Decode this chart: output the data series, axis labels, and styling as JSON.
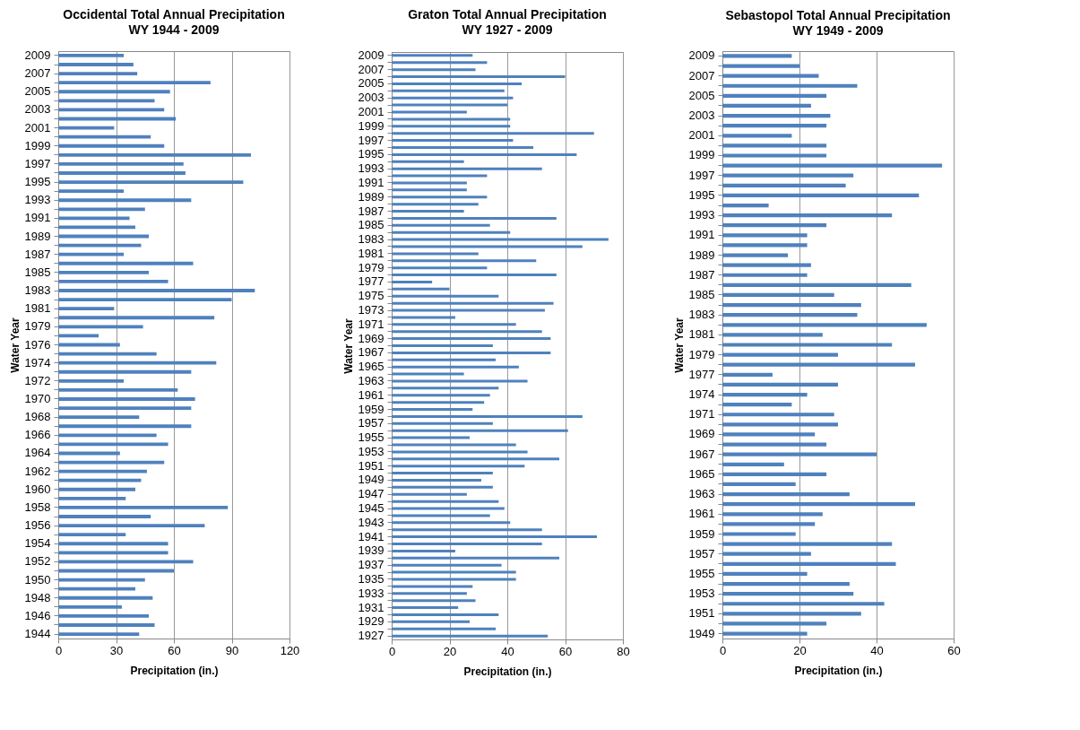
{
  "chart_data": [
    {
      "type": "bar",
      "orientation": "horizontal",
      "title": "Occidental Total Annual Precipitation",
      "subtitle": "WY 1944 - 2009",
      "xlabel": "Precipitation (in.)",
      "ylabel": "Water Year",
      "color": "#4f81bd",
      "grid": "x",
      "xlim": [
        0,
        120
      ],
      "xticks": [
        0,
        30,
        60,
        90,
        120
      ],
      "categories": [
        "2009",
        null,
        "2007",
        null,
        "2005",
        null,
        "2003",
        null,
        "2001",
        null,
        "1999",
        null,
        "1997",
        null,
        "1995",
        null,
        "1993",
        null,
        "1991",
        null,
        "1989",
        null,
        "1987",
        null,
        "1985",
        null,
        "1983",
        null,
        "1981",
        null,
        "1979",
        null,
        "1976",
        null,
        "1974",
        null,
        "1972",
        null,
        "1970",
        null,
        "1968",
        null,
        "1966",
        null,
        "1964",
        null,
        "1962",
        null,
        "1960",
        null,
        "1958",
        null,
        "1956",
        null,
        "1954",
        null,
        "1952",
        null,
        "1950",
        null,
        "1948",
        null,
        "1946",
        null,
        "1944"
      ],
      "values": [
        34,
        39,
        41,
        79,
        58,
        50,
        55,
        61,
        29,
        48,
        55,
        100,
        65,
        66,
        96,
        34,
        69,
        45,
        37,
        40,
        47,
        43,
        34,
        70,
        47,
        57,
        102,
        90,
        29,
        81,
        44,
        21,
        32,
        51,
        82,
        69,
        34,
        62,
        71,
        69,
        42,
        69,
        51,
        57,
        32,
        55,
        46,
        43,
        40,
        35,
        88,
        48,
        76,
        35,
        57,
        57,
        70,
        60,
        45,
        40,
        49,
        33,
        47,
        50,
        42
      ]
    },
    {
      "type": "bar",
      "orientation": "horizontal",
      "title": "Graton Total Annual Precipitation",
      "subtitle": "WY 1927 - 2009",
      "xlabel": "Precipitation (in.)",
      "ylabel": "Water Year",
      "color": "#4f81bd",
      "grid": "x",
      "xlim": [
        0,
        80
      ],
      "xticks": [
        0,
        20,
        40,
        60,
        80
      ],
      "categories": [
        "2009",
        null,
        "2007",
        null,
        "2005",
        null,
        "2003",
        null,
        "2001",
        null,
        "1999",
        null,
        "1997",
        null,
        "1995",
        null,
        "1993",
        null,
        "1991",
        null,
        "1989",
        null,
        "1987",
        null,
        "1985",
        null,
        "1983",
        null,
        "1981",
        null,
        "1979",
        null,
        "1977",
        null,
        "1975",
        null,
        "1973",
        null,
        "1971",
        null,
        "1969",
        null,
        "1967",
        null,
        "1965",
        null,
        "1963",
        null,
        "1961",
        null,
        "1959",
        null,
        "1957",
        null,
        "1955",
        null,
        "1953",
        null,
        "1951",
        null,
        "1949",
        null,
        "1947",
        null,
        "1945",
        null,
        "1943",
        null,
        "1941",
        null,
        "1939",
        null,
        "1937",
        null,
        "1935",
        null,
        "1933",
        null,
        "1931",
        null,
        "1929",
        null,
        "1927"
      ],
      "values": [
        28,
        33,
        29,
        60,
        45,
        39,
        42,
        40,
        26,
        41,
        41,
        70,
        42,
        49,
        64,
        25,
        52,
        33,
        26,
        26,
        33,
        30,
        25,
        57,
        34,
        41,
        75,
        66,
        30,
        50,
        33,
        57,
        14,
        20,
        37,
        56,
        53,
        22,
        43,
        52,
        55,
        35,
        55,
        36,
        44,
        25,
        47,
        37,
        34,
        32,
        28,
        66,
        35,
        61,
        27,
        43,
        47,
        58,
        46,
        35,
        31,
        35,
        26,
        37,
        39,
        34,
        41,
        52,
        71,
        52,
        22,
        58,
        38,
        43,
        43,
        28,
        26,
        29,
        23,
        37,
        27,
        36,
        54
      ]
    },
    {
      "type": "bar",
      "orientation": "horizontal",
      "title": "Sebastopol Total Annual Precipitation",
      "subtitle": "WY 1949 - 2009",
      "xlabel": "Precipitation (in.)",
      "ylabel": "Water Year",
      "color": "#4f81bd",
      "grid": "x",
      "xlim": [
        0,
        60
      ],
      "xticks": [
        0,
        20,
        40,
        60
      ],
      "categories": [
        "2009",
        null,
        "2007",
        null,
        "2005",
        null,
        "2003",
        null,
        "2001",
        null,
        "1999",
        null,
        "1997",
        null,
        "1995",
        null,
        "1993",
        null,
        "1991",
        null,
        "1989",
        null,
        "1987",
        null,
        "1985",
        null,
        "1983",
        null,
        "1981",
        null,
        "1979",
        null,
        "1977",
        null,
        "1974",
        null,
        "1971",
        null,
        "1969",
        null,
        "1967",
        null,
        "1965",
        null,
        "1963",
        null,
        "1961",
        null,
        "1959",
        null,
        "1957",
        null,
        "1955",
        null,
        "1953",
        null,
        "1951",
        null,
        "1949"
      ],
      "values": [
        18,
        20,
        25,
        35,
        27,
        23,
        28,
        27,
        18,
        27,
        27,
        57,
        34,
        32,
        51,
        12,
        44,
        27,
        22,
        22,
        17,
        23,
        22,
        49,
        29,
        36,
        35,
        53,
        26,
        44,
        30,
        50,
        13,
        30,
        22,
        18,
        29,
        30,
        24,
        27,
        40,
        16,
        27,
        19,
        33,
        50,
        26,
        24,
        19,
        44,
        23,
        45,
        22,
        33,
        34,
        42,
        36,
        27,
        22
      ]
    }
  ]
}
